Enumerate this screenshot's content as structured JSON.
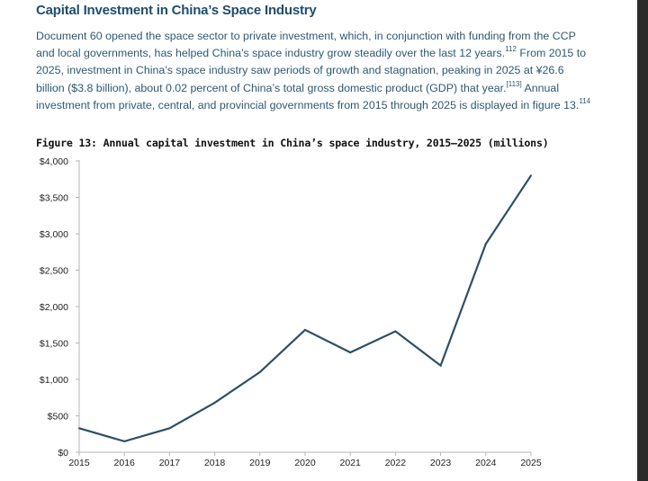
{
  "section": {
    "heading": "Capital Investment in China’s Space Industry"
  },
  "paragraph": {
    "part1": "Document 60 opened the space sector to private investment, which, in conjunction with funding from the CCP and local governments, has helped China’s space industry grow steadily over the last 12 years.",
    "ref1": "112",
    "part2": " From 2015 to 2025, investment in China’s space industry saw periods of growth and stagnation, peaking in 2025 at ¥26.6 billion ($3.8 billion), about 0.02 percent of China’s total gross domestic product (GDP) that year.",
    "ref2": "[113]",
    "part3": " Annual investment from private, central, and provincial governments from 2015 through 2025 is displayed in figure 13.",
    "ref3": "114"
  },
  "chart_data": {
    "type": "line",
    "title": "Figure 13: Annual capital investment in China’s space industry, 2015–2025 (millions)",
    "xlabel": "",
    "ylabel": "",
    "categories": [
      "2015",
      "2016",
      "2017",
      "2018",
      "2019",
      "2020",
      "2021",
      "2022",
      "2023",
      "2024",
      "2025"
    ],
    "series": [
      {
        "values": [
          330,
          150,
          330,
          680,
          1100,
          1680,
          1370,
          1660,
          1190,
          2860,
          3800
        ],
        "color": "#2c4f67"
      }
    ],
    "ylim": [
      0,
      4000
    ],
    "yticks": [
      0,
      500,
      1000,
      1500,
      2000,
      2500,
      3000,
      3500,
      4000
    ],
    "ytick_labels": [
      "$0",
      "$500",
      "$1,000",
      "$1,500",
      "$2,000",
      "$2,500",
      "$3,000",
      "$3,500",
      "$4,000"
    ],
    "grid": false,
    "legend": "none"
  }
}
